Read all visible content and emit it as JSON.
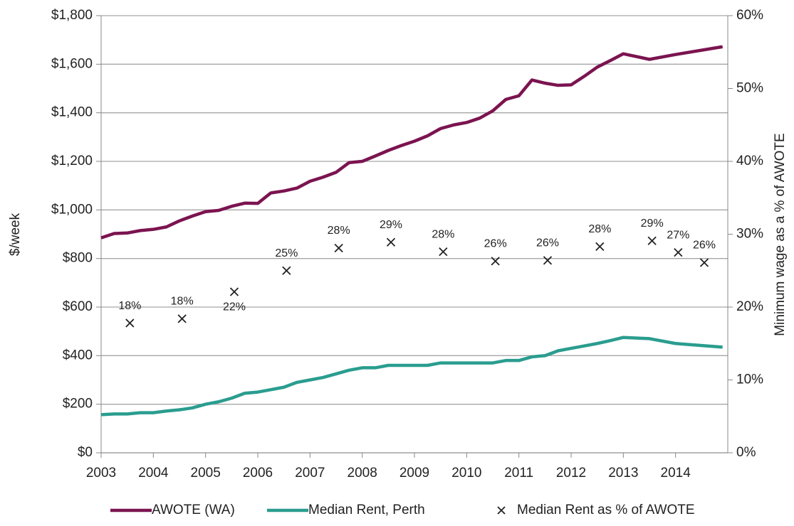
{
  "chart_data": {
    "type": "line",
    "ylabel": "$/week",
    "y2label": "Minimum wage as a % of AWOTE",
    "xlim": [
      2003,
      2015
    ],
    "xticks": [
      2003,
      2004,
      2005,
      2006,
      2007,
      2008,
      2009,
      2010,
      2011,
      2012,
      2013,
      2014
    ],
    "ylim": [
      0,
      1800
    ],
    "yticks": [
      {
        "value": 0,
        "label": "$0"
      },
      {
        "value": 200,
        "label": "$200"
      },
      {
        "value": 400,
        "label": "$400"
      },
      {
        "value": 600,
        "label": "$600"
      },
      {
        "value": 800,
        "label": "$800"
      },
      {
        "value": 1000,
        "label": "$1,000"
      },
      {
        "value": 1200,
        "label": "$1,200"
      },
      {
        "value": 1400,
        "label": "$1,400"
      },
      {
        "value": 1600,
        "label": "$1,600"
      },
      {
        "value": 1800,
        "label": "$1,800"
      }
    ],
    "y2lim": [
      0,
      60
    ],
    "y2ticks": [
      {
        "value": 0,
        "label": "0%"
      },
      {
        "value": 10,
        "label": "10%"
      },
      {
        "value": 20,
        "label": "20%"
      },
      {
        "value": 30,
        "label": "30%"
      },
      {
        "value": 40,
        "label": "40%"
      },
      {
        "value": 50,
        "label": "50%"
      },
      {
        "value": 60,
        "label": "60%"
      }
    ],
    "grid": true,
    "legend": "bottom",
    "series": [
      {
        "name": "AWOTE (WA)",
        "color": "#7b1450",
        "type": "line",
        "x": [
          2003,
          2003.25,
          2003.5,
          2003.75,
          2004,
          2004.25,
          2004.5,
          2004.75,
          2005,
          2005.25,
          2005.5,
          2005.75,
          2006,
          2006.25,
          2006.5,
          2006.75,
          2007,
          2007.25,
          2007.5,
          2007.75,
          2008,
          2008.25,
          2008.5,
          2008.75,
          2009,
          2009.25,
          2009.5,
          2009.75,
          2010,
          2010.25,
          2010.5,
          2010.75,
          2011,
          2011.25,
          2011.5,
          2011.75,
          2012,
          2012.25,
          2012.5,
          2012.75,
          2013,
          2013.5,
          2014,
          2014.9
        ],
        "values": [
          885,
          903,
          905,
          915,
          920,
          930,
          955,
          975,
          993,
          998,
          1015,
          1028,
          1027,
          1070,
          1078,
          1090,
          1118,
          1135,
          1155,
          1195,
          1200,
          1222,
          1245,
          1265,
          1283,
          1305,
          1335,
          1350,
          1360,
          1378,
          1408,
          1455,
          1470,
          1535,
          1522,
          1513,
          1515,
          1550,
          1588,
          1615,
          1643,
          1620,
          1640,
          1672
        ]
      },
      {
        "name": "Median Rent, Perth",
        "color": "#2a9d8f",
        "type": "line",
        "x": [
          2003,
          2003.25,
          2003.5,
          2003.75,
          2004,
          2004.25,
          2004.5,
          2004.75,
          2005,
          2005.25,
          2005.5,
          2005.75,
          2006,
          2006.25,
          2006.5,
          2006.75,
          2007,
          2007.25,
          2007.5,
          2007.75,
          2008,
          2008.25,
          2008.5,
          2008.75,
          2009,
          2009.25,
          2009.5,
          2009.75,
          2010,
          2010.25,
          2010.5,
          2010.75,
          2011,
          2011.25,
          2011.5,
          2011.75,
          2012,
          2012.25,
          2012.5,
          2012.75,
          2013,
          2013.5,
          2014,
          2014.9
        ],
        "values": [
          157,
          160,
          160,
          165,
          165,
          172,
          177,
          185,
          200,
          210,
          225,
          245,
          250,
          260,
          270,
          290,
          300,
          310,
          325,
          340,
          350,
          350,
          360,
          360,
          360,
          360,
          370,
          370,
          370,
          370,
          370,
          380,
          380,
          395,
          400,
          420,
          430,
          440,
          450,
          462,
          475,
          470,
          450,
          435
        ]
      },
      {
        "name": "Median Rent as % of AWOTE",
        "color": "#222222",
        "type": "scatter",
        "axis": "y2",
        "x": [
          2003.55,
          2004.55,
          2005.55,
          2006.55,
          2007.55,
          2008.55,
          2009.55,
          2010.55,
          2011.55,
          2012.55,
          2013.55,
          2014.05,
          2014.55
        ],
        "values": [
          17.8,
          18.4,
          22.1,
          25.0,
          28.1,
          28.9,
          27.6,
          26.3,
          26.4,
          28.3,
          29.1,
          27.5,
          26.1
        ],
        "value_labels": [
          "18%",
          "18%",
          "22%",
          "25%",
          "28%",
          "29%",
          "28%",
          "26%",
          "26%",
          "28%",
          "29%",
          "27%",
          "26%"
        ]
      }
    ]
  }
}
